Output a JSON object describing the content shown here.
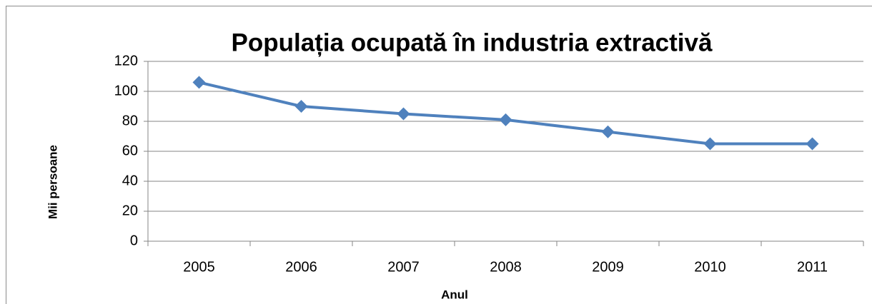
{
  "chart_data": {
    "type": "line",
    "title": "Populația ocupată în industria extractivă",
    "x_label": "Anul",
    "y_label": "Mii persoane",
    "categories": [
      "2005",
      "2006",
      "2007",
      "2008",
      "2009",
      "2010",
      "2011"
    ],
    "values": [
      106,
      90,
      85,
      81,
      73,
      65,
      65
    ],
    "color": "#4f81bd",
    "ylim": [
      0,
      120
    ],
    "yticks": [
      0,
      20,
      40,
      60,
      80,
      100,
      120
    ],
    "grid": true
  }
}
